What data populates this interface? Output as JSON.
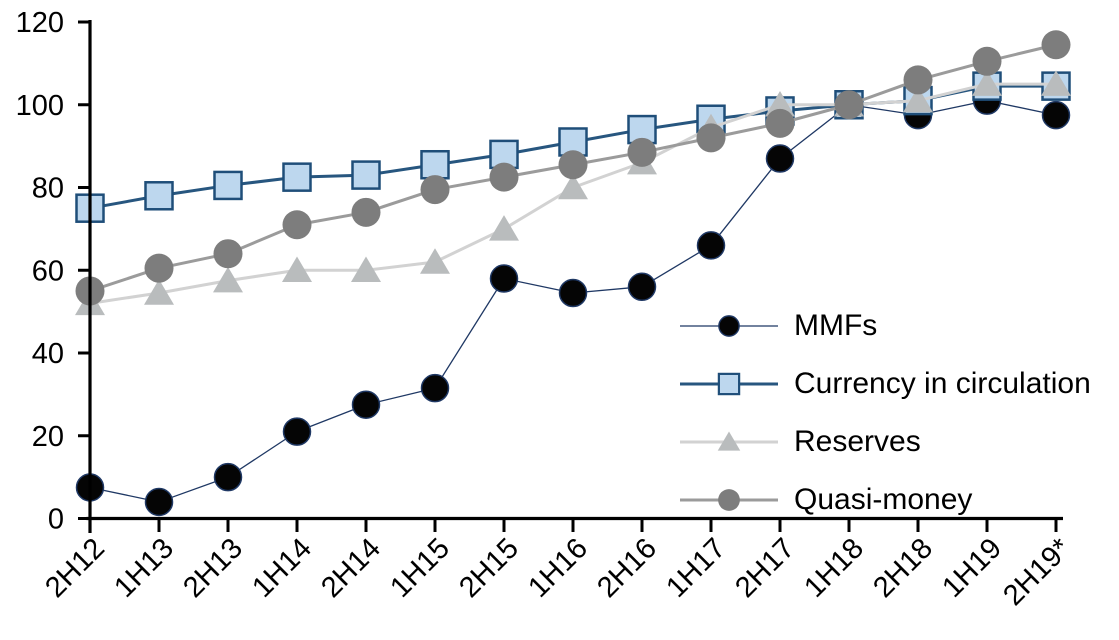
{
  "chart_data": {
    "type": "line",
    "title": "",
    "xlabel": "",
    "ylabel": "",
    "categories": [
      "2H12",
      "1H13",
      "2H13",
      "1H14",
      "2H14",
      "1H15",
      "2H15",
      "1H16",
      "2H16",
      "1H17",
      "2H17",
      "1H18",
      "2H18",
      "1H19",
      "2H19*"
    ],
    "series": [
      {
        "name": "MMFs",
        "marker": "circle",
        "values": [
          7.5,
          4,
          10,
          21,
          27.5,
          31.5,
          58,
          54.5,
          56,
          66,
          87,
          100,
          97.5,
          101,
          97.5
        ],
        "line_color": "#1f3864",
        "line_width": 1.3,
        "marker_fill": "#050505",
        "marker_stroke": "#1f3864",
        "marker_size": 27
      },
      {
        "name": "Currency in circulation",
        "marker": "square",
        "values": [
          75,
          78,
          80.5,
          82.5,
          83,
          85.5,
          88,
          91,
          94,
          96.5,
          98.5,
          100,
          101,
          104.5,
          104.5
        ],
        "line_color": "#27567f",
        "line_width": 3,
        "marker_fill": "#bdd7ee",
        "marker_stroke": "#1f4e79",
        "marker_size": 27
      },
      {
        "name": "Reserves",
        "marker": "triangle",
        "values": [
          52,
          54.5,
          57.5,
          60,
          60,
          62,
          70,
          80,
          86,
          94.5,
          100,
          100,
          101,
          105,
          105
        ],
        "line_color": "#d2d2d2",
        "line_width": 3,
        "marker_fill": "#b9bcbd",
        "marker_stroke": "none",
        "marker_size": 30
      },
      {
        "name": "Quasi-money",
        "marker": "circle",
        "values": [
          55,
          60.5,
          64,
          71,
          74,
          79.5,
          82.5,
          85.5,
          88.5,
          92,
          95.5,
          100,
          106,
          110.5,
          114.5
        ],
        "line_color": "#9b9b9b",
        "line_width": 3,
        "marker_fill": "#7d7d7d",
        "marker_stroke": "none",
        "marker_size": 29
      }
    ],
    "ylim": [
      0,
      120
    ],
    "yticks": [
      0,
      20,
      40,
      60,
      80,
      100,
      120
    ],
    "grid": false,
    "legend_position": "inside-right",
    "axis_color": "#000000",
    "tick_label_color": "#000000"
  }
}
